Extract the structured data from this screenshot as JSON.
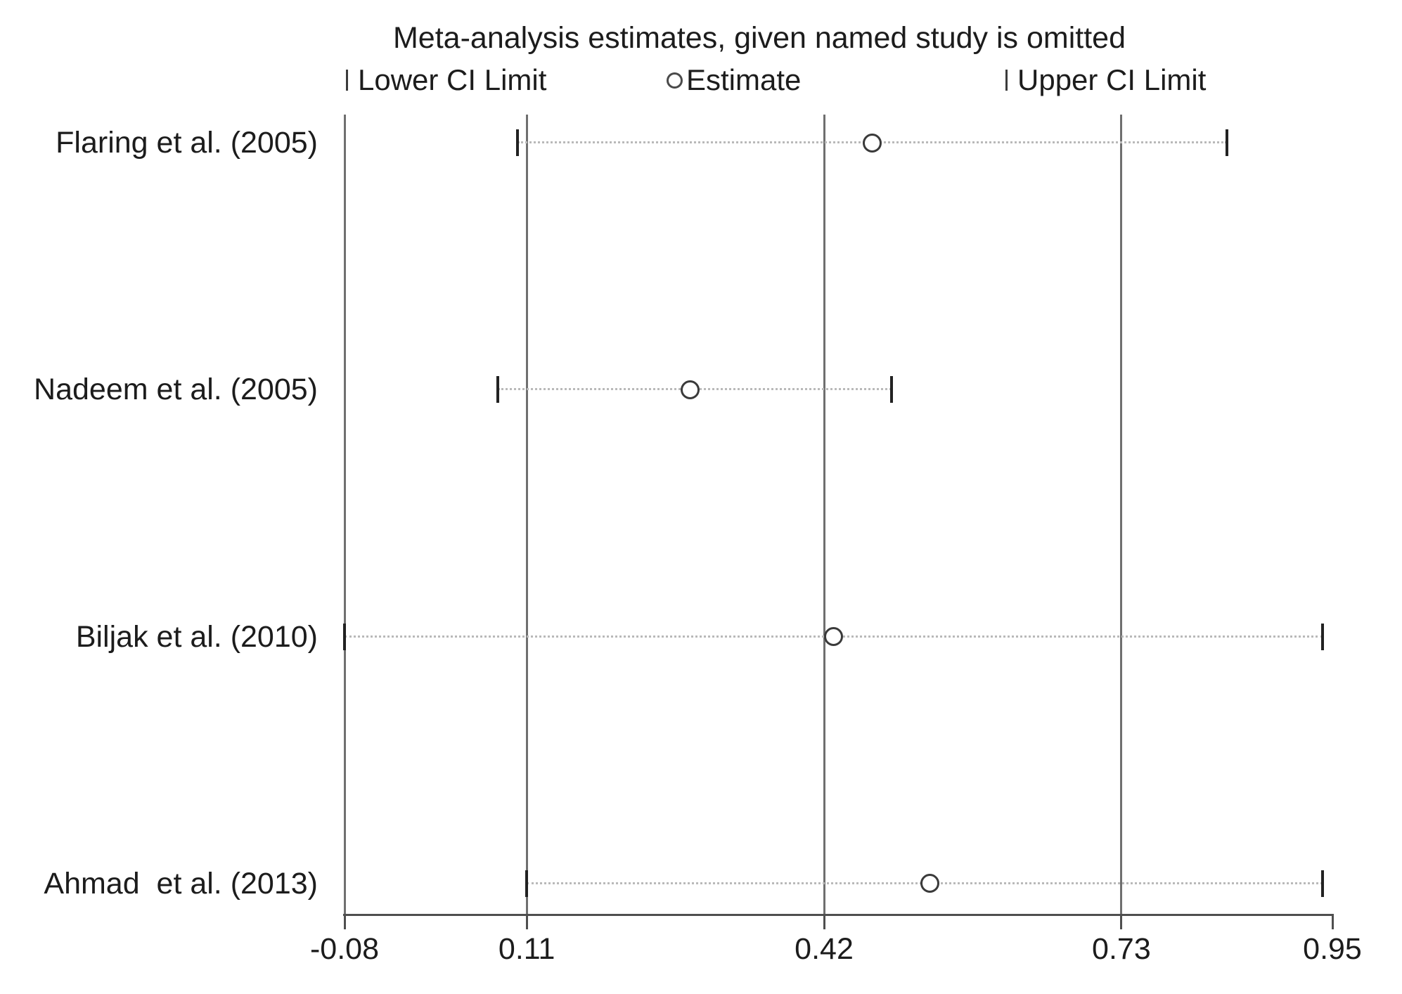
{
  "title": "Meta-analysis estimates, given named study is omitted",
  "legend": {
    "lower_label": "Lower CI Limit",
    "estimate_label": "Estimate",
    "upper_label": "Upper CI Limit"
  },
  "colors": {
    "background": "#ffffff",
    "text": "#1c1c1c",
    "gridline": "#6f6f6f",
    "axis": "#4f4f4f",
    "ci_tick": "#222222",
    "estimate_ring": "#3a3a3a",
    "dotted_line": "#b9b9b9"
  },
  "chart_data": {
    "type": "scatter",
    "subtype": "leave-one-out-sensitivity-forest",
    "title": "Meta-analysis estimates, given named study is omitted",
    "xlabel": "",
    "ylabel": "",
    "xlim": [
      -0.08,
      0.95
    ],
    "x_ticks": [
      -0.08,
      0.11,
      0.42,
      0.73,
      0.95
    ],
    "x_tick_labels": [
      "-0.08",
      "0.11",
      "0.42",
      "0.73",
      "0.95"
    ],
    "gridline_values": [
      -0.08,
      0.11,
      0.42,
      0.73
    ],
    "grid": true,
    "legend_position": "top",
    "legend_entries": [
      "Lower CI Limit",
      "Estimate",
      "Upper CI Limit"
    ],
    "studies": [
      {
        "label": "Flaring et al. (2005)",
        "lower": 0.1,
        "estimate": 0.47,
        "upper": 0.84
      },
      {
        "label": "Nadeem et al. (2005)",
        "lower": 0.08,
        "estimate": 0.28,
        "upper": 0.49
      },
      {
        "label": "Biljak et al. (2010)",
        "lower": -0.08,
        "estimate": 0.43,
        "upper": 0.94
      },
      {
        "label": "Ahmad  et al. (2013)",
        "lower": 0.11,
        "estimate": 0.53,
        "upper": 0.94
      }
    ]
  }
}
